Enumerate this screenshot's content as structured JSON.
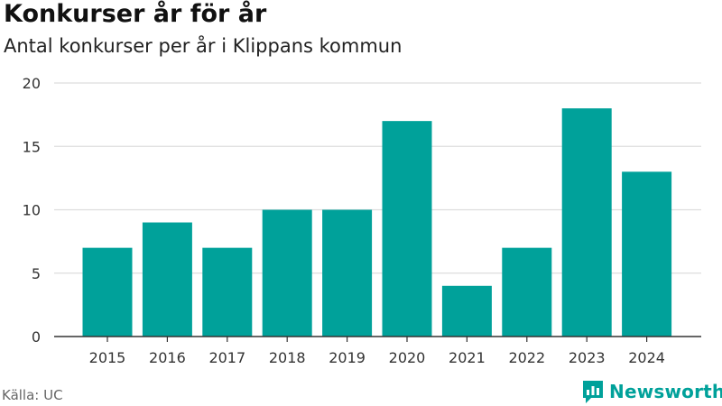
{
  "header": {
    "title": "Konkurser år för år",
    "subtitle": "Antal konkurser per år i Klippans kommun"
  },
  "footer": {
    "source": "Källa: UC",
    "brand": "Newsworthy",
    "brand_icon": "newsworthy-logo-icon"
  },
  "colors": {
    "bar": "#00a19a",
    "grid": "#dddddd",
    "axis": "#333333"
  },
  "chart_data": {
    "type": "bar",
    "title": "Konkurser år för år",
    "subtitle": "Antal konkurser per år i Klippans kommun",
    "categories": [
      "2015",
      "2016",
      "2017",
      "2018",
      "2019",
      "2020",
      "2021",
      "2022",
      "2023",
      "2024"
    ],
    "values": [
      7,
      9,
      7,
      10,
      10,
      17,
      4,
      7,
      18,
      13
    ],
    "ylim": [
      0,
      20
    ],
    "yticks": [
      0,
      5,
      10,
      15,
      20
    ],
    "grid": true,
    "legend": "none"
  }
}
